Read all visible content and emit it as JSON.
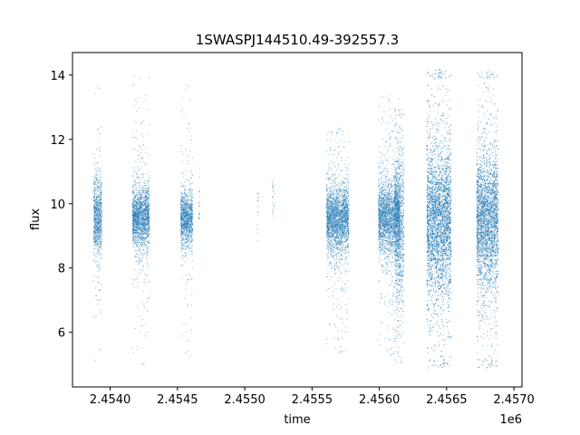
{
  "chart_data": {
    "type": "scatter",
    "title": "1SWASPJ144510.49-392557.3",
    "xlabel": "time",
    "ylabel": "flux",
    "x_offset_label": "1e6",
    "xlim": [
      2453720,
      2457060
    ],
    "ylim": [
      4.3,
      14.7
    ],
    "x_ticks": [
      2454000,
      2454500,
      2455000,
      2455500,
      2456000,
      2456500,
      2457000
    ],
    "x_tick_labels": [
      "2.4540",
      "2.4545",
      "2.4550",
      "2.4555",
      "2.4560",
      "2.4565",
      "2.4570"
    ],
    "y_ticks": [
      6,
      8,
      10,
      12,
      14
    ],
    "y_tick_labels": [
      "6",
      "8",
      "10",
      "12",
      "14"
    ],
    "grid": false,
    "marker_color": "#1f77b4",
    "series": [
      {
        "clusters": [
          {
            "x_start": 2453873,
            "x_end": 2453934,
            "center": 9.6,
            "sigma": 0.55,
            "outlier_min": 5.0,
            "outlier_max": 14.2,
            "density": 9
          },
          {
            "x_start": 2454163,
            "x_end": 2454289,
            "center": 9.6,
            "sigma": 0.45,
            "outlier_min": 4.9,
            "outlier_max": 14.2,
            "density": 9
          },
          {
            "x_start": 2454521,
            "x_end": 2454609,
            "center": 9.55,
            "sigma": 0.4,
            "outlier_min": 5.1,
            "outlier_max": 13.8,
            "density": 8
          },
          {
            "x_start": 2454655,
            "x_end": 2454662,
            "center": 9.9,
            "sigma": 0.5,
            "outlier_min": 9.5,
            "outlier_max": 11.2,
            "density": 2
          },
          {
            "x_start": 2455090,
            "x_end": 2455100,
            "center": 9.9,
            "sigma": 0.5,
            "outlier_min": 8.2,
            "outlier_max": 10.4,
            "density": 1
          },
          {
            "x_start": 2455200,
            "x_end": 2455215,
            "center": 10.3,
            "sigma": 0.4,
            "outlier_min": 9.5,
            "outlier_max": 10.8,
            "density": 1
          },
          {
            "x_start": 2455605,
            "x_end": 2455770,
            "center": 9.55,
            "sigma": 0.5,
            "outlier_min": 5.3,
            "outlier_max": 12.4,
            "density": 9
          },
          {
            "x_start": 2455990,
            "x_end": 2456150,
            "center": 9.6,
            "sigma": 0.55,
            "outlier_min": 5.2,
            "outlier_max": 13.5,
            "density": 9
          },
          {
            "x_start": 2456110,
            "x_end": 2456180,
            "center": 9.3,
            "sigma": 1.1,
            "outlier_min": 5.0,
            "outlier_max": 13.0,
            "density": 9
          },
          {
            "x_start": 2456350,
            "x_end": 2456530,
            "center": 9.5,
            "sigma": 1.1,
            "outlier_min": 4.9,
            "outlier_max": 14.2,
            "density": 14
          },
          {
            "x_start": 2456720,
            "x_end": 2456880,
            "center": 9.5,
            "sigma": 1.0,
            "outlier_min": 4.9,
            "outlier_max": 14.2,
            "density": 13
          }
        ]
      }
    ]
  }
}
